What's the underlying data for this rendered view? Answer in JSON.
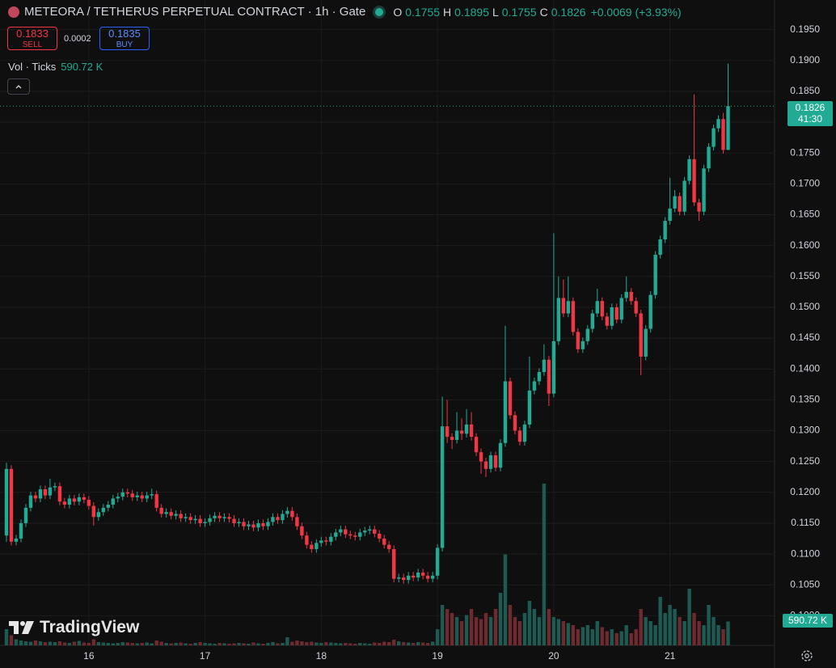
{
  "header": {
    "symbol": "METEORA / TETHERUS PERPETUAL CONTRACT · 1h · Gate",
    "ohlc": [
      {
        "label": "O",
        "value": "0.1755"
      },
      {
        "label": "H",
        "value": "0.1895"
      },
      {
        "label": "L",
        "value": "0.1755"
      },
      {
        "label": "C",
        "value": "0.1826"
      }
    ],
    "change": "+0.0069 (+3.93%)"
  },
  "trade": {
    "sell_price": "0.1833",
    "sell_label": "SELL",
    "spread": "0.0002",
    "buy_price": "0.1835",
    "buy_label": "BUY"
  },
  "indicator": {
    "name": "Vol · Ticks",
    "value": "590.72 K"
  },
  "brand": "TradingView",
  "chart_data": {
    "type": "candlestick",
    "up_color": "#22ab94",
    "down_color": "#f23645",
    "up_volume_color": "#1c5a52",
    "down_volume_color": "#6e2a2f",
    "grid": true,
    "ylim": [
      0.0952,
      0.1998
    ],
    "yticks": [
      {
        "value": 0.1,
        "label": "0.1000"
      },
      {
        "value": 0.105,
        "label": "0.1050"
      },
      {
        "value": 0.11,
        "label": "0.1100"
      },
      {
        "value": 0.115,
        "label": "0.1150"
      },
      {
        "value": 0.12,
        "label": "0.1200"
      },
      {
        "value": 0.125,
        "label": "0.1250"
      },
      {
        "value": 0.13,
        "label": "0.1300"
      },
      {
        "value": 0.135,
        "label": "0.1350"
      },
      {
        "value": 0.14,
        "label": "0.1400"
      },
      {
        "value": 0.145,
        "label": "0.1450"
      },
      {
        "value": 0.15,
        "label": "0.1500"
      },
      {
        "value": 0.155,
        "label": "0.1550"
      },
      {
        "value": 0.16,
        "label": "0.1600"
      },
      {
        "value": 0.165,
        "label": "0.1650"
      },
      {
        "value": 0.17,
        "label": "0.1700"
      },
      {
        "value": 0.175,
        "label": "0.1750"
      },
      {
        "value": 0.18,
        "label": "0.1800"
      },
      {
        "value": 0.185,
        "label": "0.1850"
      },
      {
        "value": 0.19,
        "label": "0.1900"
      },
      {
        "value": 0.195,
        "label": "0.1950"
      }
    ],
    "last_price": {
      "value": 0.1826,
      "label": "0.1826"
    },
    "countdown": "41:30",
    "volume_label": "590.72 K",
    "categories": [
      null,
      null,
      null,
      null,
      null,
      null,
      null,
      null,
      null,
      null,
      null,
      null,
      null,
      null,
      null,
      null,
      null,
      "16",
      null,
      null,
      null,
      null,
      null,
      null,
      null,
      null,
      null,
      null,
      null,
      null,
      null,
      null,
      null,
      null,
      null,
      null,
      null,
      null,
      null,
      null,
      null,
      "17",
      null,
      null,
      null,
      null,
      null,
      null,
      null,
      null,
      null,
      null,
      null,
      null,
      null,
      null,
      null,
      null,
      null,
      null,
      null,
      null,
      null,
      null,
      null,
      "18",
      null,
      null,
      null,
      null,
      null,
      null,
      null,
      null,
      null,
      null,
      null,
      null,
      null,
      null,
      null,
      null,
      null,
      null,
      null,
      null,
      null,
      null,
      null,
      "19",
      null,
      null,
      null,
      null,
      null,
      null,
      null,
      null,
      null,
      null,
      null,
      null,
      null,
      null,
      null,
      null,
      null,
      null,
      null,
      null,
      null,
      null,
      null,
      "20",
      null,
      null,
      null,
      null,
      null,
      null,
      null,
      null,
      null,
      null,
      null,
      null,
      null,
      null,
      null,
      null,
      null,
      null,
      null,
      null,
      null,
      null,
      null,
      "21",
      null,
      null,
      null,
      null,
      null,
      null,
      null,
      null,
      null,
      null,
      null,
      null
    ],
    "open": [
      0.113,
      0.1238,
      0.112,
      0.1125,
      0.115,
      0.1175,
      0.1195,
      0.119,
      0.1205,
      0.1195,
      0.1208,
      0.121,
      0.1185,
      0.118,
      0.119,
      0.1185,
      0.1192,
      0.1188,
      0.1178,
      0.116,
      0.1168,
      0.1175,
      0.118,
      0.119,
      0.1193,
      0.12,
      0.1198,
      0.1192,
      0.1195,
      0.119,
      0.1195,
      0.1197,
      0.1175,
      0.1165,
      0.1168,
      0.1162,
      0.1165,
      0.1158,
      0.116,
      0.1155,
      0.1157,
      0.115,
      0.1152,
      0.1158,
      0.1162,
      0.1158,
      0.116,
      0.1157,
      0.115,
      0.1152,
      0.1145,
      0.1148,
      0.1143,
      0.115,
      0.1145,
      0.1152,
      0.116,
      0.1155,
      0.1165,
      0.117,
      0.116,
      0.1145,
      0.113,
      0.1115,
      0.1108,
      0.1118,
      0.1122,
      0.112,
      0.1128,
      0.1135,
      0.114,
      0.1132,
      0.113,
      0.1128,
      0.1135,
      0.1138,
      0.114,
      0.1133,
      0.1125,
      0.1115,
      0.1108,
      0.106,
      0.1062,
      0.1058,
      0.1065,
      0.1062,
      0.107,
      0.1065,
      0.106,
      0.1065,
      0.111,
      0.1307,
      0.129,
      0.1285,
      0.13,
      0.1295,
      0.131,
      0.129,
      0.1265,
      0.125,
      0.1238,
      0.126,
      0.124,
      0.128,
      0.138,
      0.1325,
      0.13,
      0.1282,
      0.131,
      0.1365,
      0.138,
      0.1395,
      0.1415,
      0.136,
      0.1445,
      0.1515,
      0.149,
      0.151,
      0.146,
      0.1432,
      0.1445,
      0.1465,
      0.149,
      0.151,
      0.1485,
      0.147,
      0.15,
      0.148,
      0.1515,
      0.1525,
      0.151,
      0.149,
      0.142,
      0.1465,
      0.152,
      0.1585,
      0.161,
      0.164,
      0.166,
      0.168,
      0.1655,
      0.1705,
      0.174,
      0.167,
      0.1655,
      0.1725,
      0.176,
      0.179,
      0.1805,
      0.1755
    ],
    "high": [
      0.1248,
      0.1244,
      0.1131,
      0.1156,
      0.1181,
      0.1201,
      0.1201,
      0.1211,
      0.1211,
      0.1222,
      0.1216,
      0.1216,
      0.1191,
      0.1196,
      0.1196,
      0.1198,
      0.1198,
      0.1194,
      0.1184,
      0.1174,
      0.1181,
      0.1186,
      0.1196,
      0.1199,
      0.1206,
      0.1206,
      0.1204,
      0.1201,
      0.1201,
      0.1201,
      0.1206,
      0.1203,
      0.1181,
      0.1174,
      0.1174,
      0.1171,
      0.1171,
      0.1166,
      0.1166,
      0.1163,
      0.1163,
      0.1158,
      0.1164,
      0.1168,
      0.1168,
      0.1166,
      0.1166,
      0.1163,
      0.1158,
      0.1158,
      0.1154,
      0.1154,
      0.1156,
      0.1156,
      0.1158,
      0.1166,
      0.1166,
      0.1171,
      0.1176,
      0.1176,
      0.1166,
      0.1151,
      0.1136,
      0.1121,
      0.1124,
      0.1128,
      0.1128,
      0.1134,
      0.1141,
      0.1146,
      0.1146,
      0.1138,
      0.1136,
      0.1141,
      0.1144,
      0.1146,
      0.1146,
      0.1139,
      0.1131,
      0.1121,
      0.1114,
      0.1068,
      0.1068,
      0.1071,
      0.1071,
      0.1076,
      0.1076,
      0.1071,
      0.1071,
      0.1116,
      0.1355,
      0.135,
      0.1296,
      0.133,
      0.132,
      0.1335,
      0.133,
      0.1296,
      0.1271,
      0.1256,
      0.1266,
      0.1266,
      0.1286,
      0.147,
      0.1386,
      0.1331,
      0.1306,
      0.1316,
      0.142,
      0.1386,
      0.1401,
      0.144,
      0.1421,
      0.162,
      0.155,
      0.1545,
      0.155,
      0.1516,
      0.1466,
      0.1451,
      0.1471,
      0.1496,
      0.153,
      0.1516,
      0.1491,
      0.1506,
      0.1506,
      0.1521,
      0.155,
      0.1531,
      0.1516,
      0.1496,
      0.1471,
      0.1526,
      0.1591,
      0.1616,
      0.1646,
      0.171,
      0.169,
      0.1686,
      0.1711,
      0.1746,
      0.1845,
      0.1676,
      0.1731,
      0.1766,
      0.1796,
      0.1811,
      0.1815,
      0.1895
    ],
    "low": [
      0.112,
      0.1114,
      0.1114,
      0.1119,
      0.1144,
      0.1169,
      0.1184,
      0.1184,
      0.1189,
      0.1189,
      0.1202,
      0.1179,
      0.1174,
      0.1174,
      0.1179,
      0.1179,
      0.1182,
      0.1172,
      0.1146,
      0.1154,
      0.1162,
      0.1169,
      0.1174,
      0.1184,
      0.1187,
      0.1192,
      0.1186,
      0.1186,
      0.1184,
      0.1184,
      0.1189,
      0.1169,
      0.1159,
      0.1159,
      0.1156,
      0.1156,
      0.1152,
      0.1152,
      0.1149,
      0.1149,
      0.1144,
      0.1144,
      0.1146,
      0.1152,
      0.1152,
      0.1152,
      0.1151,
      0.1144,
      0.1144,
      0.1139,
      0.1139,
      0.1137,
      0.1137,
      0.1139,
      0.1139,
      0.1146,
      0.1149,
      0.1149,
      0.1159,
      0.1154,
      0.1139,
      0.1124,
      0.1109,
      0.1102,
      0.1102,
      0.1112,
      0.1114,
      0.1114,
      0.1122,
      0.1129,
      0.1126,
      0.1124,
      0.1122,
      0.1122,
      0.1129,
      0.1132,
      0.1127,
      0.1119,
      0.1109,
      0.1102,
      0.1054,
      0.1054,
      0.1052,
      0.1052,
      0.1056,
      0.1056,
      0.1059,
      0.1054,
      0.1054,
      0.1059,
      0.1104,
      0.128,
      0.127,
      0.1279,
      0.1285,
      0.1289,
      0.1284,
      0.1259,
      0.123,
      0.1225,
      0.1232,
      0.1234,
      0.1234,
      0.1274,
      0.1319,
      0.1294,
      0.1276,
      0.1276,
      0.1304,
      0.1359,
      0.1374,
      0.1389,
      0.134,
      0.1354,
      0.1439,
      0.1484,
      0.1484,
      0.1454,
      0.1426,
      0.1426,
      0.1439,
      0.1459,
      0.1484,
      0.1479,
      0.1464,
      0.1464,
      0.1474,
      0.1474,
      0.1509,
      0.1504,
      0.1484,
      0.139,
      0.1414,
      0.1459,
      0.1514,
      0.1579,
      0.1604,
      0.1634,
      0.1654,
      0.1649,
      0.1649,
      0.1699,
      0.1664,
      0.164,
      0.1649,
      0.1719,
      0.1754,
      0.1784,
      0.1749,
      0.1755
    ],
    "close": [
      0.1238,
      0.112,
      0.1125,
      0.115,
      0.1175,
      0.1195,
      0.119,
      0.1205,
      0.1195,
      0.1208,
      0.121,
      0.1185,
      0.118,
      0.119,
      0.1185,
      0.1192,
      0.1188,
      0.1178,
      0.116,
      0.1168,
      0.1175,
      0.118,
      0.119,
      0.1193,
      0.12,
      0.1198,
      0.1192,
      0.1195,
      0.119,
      0.1195,
      0.1197,
      0.1175,
      0.1165,
      0.1168,
      0.1162,
      0.1165,
      0.1158,
      0.116,
      0.1155,
      0.1157,
      0.115,
      0.1152,
      0.1158,
      0.1162,
      0.1158,
      0.116,
      0.1157,
      0.115,
      0.1152,
      0.1145,
      0.1148,
      0.1143,
      0.115,
      0.1145,
      0.1152,
      0.116,
      0.1155,
      0.1165,
      0.117,
      0.116,
      0.1145,
      0.113,
      0.1115,
      0.1108,
      0.1118,
      0.1122,
      0.112,
      0.1128,
      0.1135,
      0.114,
      0.1132,
      0.113,
      0.1128,
      0.1135,
      0.1138,
      0.114,
      0.1133,
      0.1125,
      0.1115,
      0.1108,
      0.106,
      0.1062,
      0.1058,
      0.1065,
      0.1062,
      0.107,
      0.1065,
      0.106,
      0.1065,
      0.111,
      0.1307,
      0.129,
      0.1285,
      0.13,
      0.1295,
      0.131,
      0.129,
      0.1265,
      0.125,
      0.1238,
      0.126,
      0.124,
      0.128,
      0.138,
      0.1325,
      0.13,
      0.1282,
      0.131,
      0.1365,
      0.138,
      0.1395,
      0.1415,
      0.136,
      0.1445,
      0.1515,
      0.149,
      0.151,
      0.146,
      0.1432,
      0.1445,
      0.1465,
      0.149,
      0.151,
      0.1485,
      0.147,
      0.15,
      0.148,
      0.1515,
      0.1525,
      0.151,
      0.149,
      0.142,
      0.1465,
      0.152,
      0.1585,
      0.161,
      0.164,
      0.166,
      0.168,
      0.1655,
      0.1705,
      0.174,
      0.167,
      0.1655,
      0.1725,
      0.176,
      0.179,
      0.1805,
      0.1755,
      0.1826
    ],
    "volume": [
      400000,
      250000,
      150000,
      120000,
      100000,
      90000,
      120000,
      100000,
      80000,
      90000,
      80000,
      100000,
      70000,
      60000,
      90000,
      110000,
      70000,
      60000,
      150000,
      80000,
      70000,
      60000,
      50000,
      60000,
      80000,
      70000,
      60000,
      50000,
      60000,
      70000,
      50000,
      120000,
      90000,
      60000,
      50000,
      60000,
      70000,
      50000,
      40000,
      60000,
      80000,
      60000,
      50000,
      40000,
      60000,
      50000,
      40000,
      50000,
      60000,
      50000,
      40000,
      70000,
      50000,
      40000,
      60000,
      80000,
      50000,
      60000,
      200000,
      90000,
      120000,
      100000,
      80000,
      90000,
      70000,
      60000,
      80000,
      70000,
      60000,
      50000,
      60000,
      50000,
      40000,
      60000,
      50000,
      40000,
      70000,
      60000,
      90000,
      80000,
      140000,
      100000,
      80000,
      70000,
      60000,
      80000,
      70000,
      60000,
      90000,
      400000,
      1000000,
      900000,
      800000,
      700000,
      600000,
      750000,
      900000,
      700000,
      650000,
      800000,
      700000,
      900000,
      1300000,
      2250000,
      1000000,
      700000,
      600000,
      800000,
      1100000,
      900000,
      700000,
      4000000,
      900000,
      700000,
      650000,
      600000,
      550000,
      500000,
      400000,
      450000,
      500000,
      400000,
      600000,
      450000,
      350000,
      400000,
      300000,
      350000,
      500000,
      300000,
      400000,
      900000,
      700000,
      600000,
      500000,
      1200000,
      800000,
      1000000,
      900000,
      700000,
      600000,
      1400000,
      800000,
      600000,
      500000,
      1000000,
      700000,
      500000,
      400000,
      590720
    ]
  }
}
